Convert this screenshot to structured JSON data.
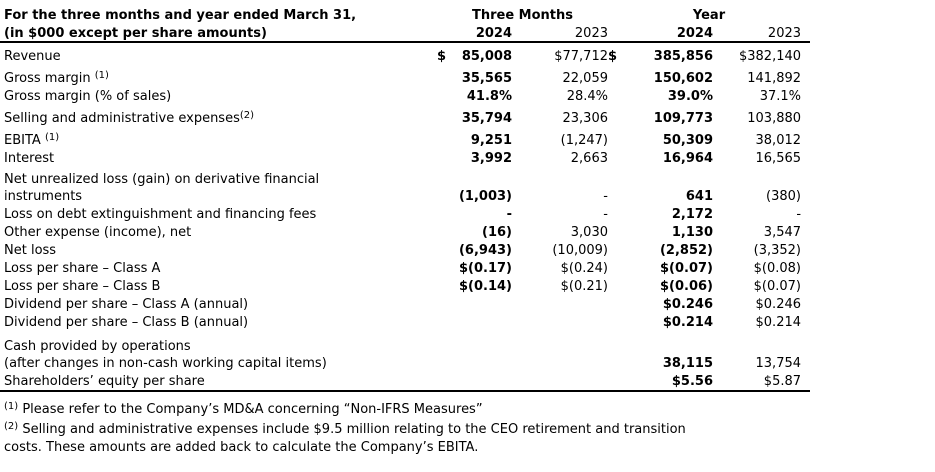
{
  "header": {
    "title_line1": "For the three months and year ended March 31,",
    "title_line2": "(in $000 except per share amounts)",
    "group_three_months": "Three Months",
    "group_year": "Year",
    "years": [
      "2024",
      "2023",
      "2024",
      "2023"
    ]
  },
  "table": {
    "rows": [
      {
        "label": "Revenue",
        "values": [
          {
            "cur": "$",
            "v": "85,008"
          },
          "$77,712",
          {
            "cur": "$",
            "v": "385,856"
          },
          "$382,140"
        ]
      },
      {
        "label": "Gross margin",
        "sup": "(1)",
        "sup_space": true,
        "gap": true,
        "values": [
          "35,565",
          "22,059",
          "150,602",
          "141,892"
        ]
      },
      {
        "label": "Gross margin (% of sales)",
        "values": [
          "41.8%",
          "28.4%",
          "39.0%",
          "37.1%"
        ]
      },
      {
        "label": "Selling and administrative expenses",
        "sup": "(2)",
        "gap": true,
        "values": [
          "35,794",
          "23,306",
          "109,773",
          "103,880"
        ]
      },
      {
        "label": "EBITA",
        "sup": "(1)",
        "sup_space": true,
        "gap": true,
        "values": [
          "9,251",
          "(1,247)",
          "50,309",
          "38,012"
        ]
      },
      {
        "label": "Interest",
        "values": [
          "3,992",
          "2,663",
          "16,964",
          "16,565"
        ]
      },
      {
        "label": "Net unrealized loss (gain) on derivative financial",
        "label2": "instruments",
        "gap": true,
        "values": [
          "(1,003)",
          "-",
          "641",
          "(380)"
        ]
      },
      {
        "label": "Loss on debt extinguishment and financing fees",
        "values": [
          "-",
          "-",
          "2,172",
          "-"
        ]
      },
      {
        "label": "Other expense (income), net",
        "values": [
          "(16)",
          "3,030",
          "1,130",
          "3,547"
        ]
      },
      {
        "label": "Net loss",
        "values": [
          "(6,943)",
          "(10,009)",
          "(2,852)",
          "(3,352)"
        ]
      },
      {
        "label": "Loss per share – Class A",
        "values": [
          "$(0.17)",
          "$(0.24)",
          "$(0.07)",
          "$(0.08)"
        ]
      },
      {
        "label": "Loss per share – Class B",
        "values": [
          "$(0.14)",
          "$(0.21)",
          "$(0.06)",
          "$(0.07)"
        ]
      },
      {
        "label": "Dividend per share – Class A (annual)",
        "values": [
          "",
          "",
          "$0.246",
          "$0.246"
        ]
      },
      {
        "label": "Dividend per share – Class B (annual)",
        "values": [
          "",
          "",
          "$0.214",
          "$0.214"
        ]
      },
      {
        "label": "Cash provided by operations",
        "label2": "(after changes in non-cash working capital items)",
        "gap2": true,
        "values": [
          "",
          "",
          "38,115",
          "13,754"
        ]
      },
      {
        "label": "Shareholders’ equity per share",
        "values": [
          "",
          "",
          "$5.56",
          "$5.87"
        ]
      }
    ]
  },
  "footnotes": [
    {
      "sup": "(1)",
      "lines": [
        "Please refer to the Company’s MD&A concerning “Non-IFRS Measures”"
      ]
    },
    {
      "sup": "(2)",
      "lines": [
        "Selling and administrative expenses include $9.5 million relating to the CEO retirement and transition",
        "costs. These amounts are added back to calculate the Company’s EBITA."
      ]
    }
  ]
}
